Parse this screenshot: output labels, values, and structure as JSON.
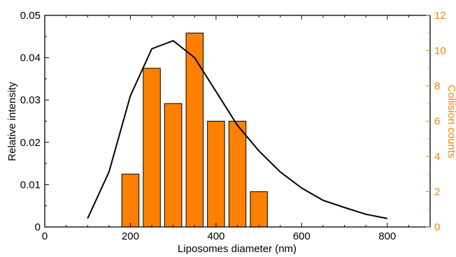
{
  "chart_data": {
    "type": "bar+line",
    "xlabel": "Liposomes diameter (nm)",
    "ylabel_left": "Relative intensity",
    "ylabel_right": "Collision counts",
    "xlim": [
      0,
      900
    ],
    "ylim_left": [
      0,
      0.05
    ],
    "ylim_right": [
      0,
      12
    ],
    "x_ticks": [
      "0",
      "200",
      "400",
      "600",
      "800"
    ],
    "y_left_ticks": [
      "0",
      "0.01",
      "0.02",
      "0.03",
      "0.04",
      "0.05"
    ],
    "y_right_ticks": [
      "0",
      "2",
      "4",
      "6",
      "8",
      "10",
      "12"
    ],
    "grid": false,
    "colors": {
      "bars": "#ff8000",
      "line": "#000000",
      "right_axis": "#ff8000"
    },
    "line_series": {
      "axis": "left",
      "x": [
        100,
        150,
        200,
        250,
        300,
        350,
        400,
        450,
        500,
        550,
        600,
        650,
        700,
        750,
        800
      ],
      "y": [
        0.002,
        0.013,
        0.031,
        0.0421,
        0.044,
        0.04,
        0.032,
        0.024,
        0.018,
        0.013,
        0.0092,
        0.0063,
        0.0046,
        0.003,
        0.002
      ]
    },
    "bar_series": {
      "axis": "right",
      "x": [
        200,
        250,
        300,
        350,
        400,
        450,
        500
      ],
      "values": [
        3,
        9,
        7,
        11,
        6,
        6,
        2
      ],
      "bar_width": 40
    }
  }
}
